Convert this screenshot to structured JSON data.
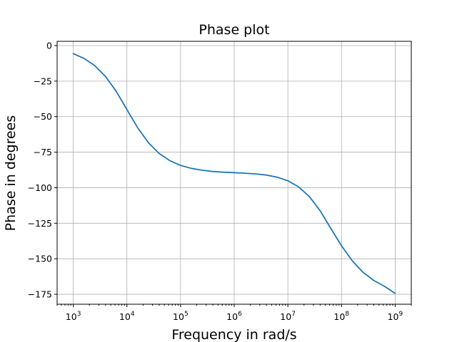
{
  "chart_data": {
    "type": "line",
    "title": "Phase plot",
    "xlabel": "Frequency in rad/s",
    "ylabel": "Phase in degrees",
    "xscale": "log",
    "xlim": [
      500,
      2000000000
    ],
    "ylim": [
      -182,
      3
    ],
    "xticks": [
      1000,
      10000,
      100000,
      1000000,
      10000000,
      100000000,
      1000000000
    ],
    "xtick_labels": [
      {
        "base": "10",
        "exp": "3"
      },
      {
        "base": "10",
        "exp": "4"
      },
      {
        "base": "10",
        "exp": "5"
      },
      {
        "base": "10",
        "exp": "6"
      },
      {
        "base": "10",
        "exp": "7"
      },
      {
        "base": "10",
        "exp": "8"
      },
      {
        "base": "10",
        "exp": "9"
      }
    ],
    "yticks": [
      0,
      -25,
      -50,
      -75,
      -100,
      -125,
      -150,
      -175
    ],
    "ytick_labels": [
      "0",
      "−25",
      "−50",
      "−75",
      "−100",
      "−125",
      "−150",
      "−175"
    ],
    "grid": true,
    "series": [
      {
        "color": "#1f77b4",
        "x": [
          1000,
          1585,
          2512,
          3981,
          6310,
          10000,
          15850,
          25120,
          39810,
          63100,
          100000,
          158500,
          251200,
          398100,
          631000,
          1000000,
          1585000,
          2512000,
          3981000,
          6310000,
          10000000,
          15850000,
          25120000,
          39810000,
          63100000,
          100000000,
          158500000,
          251200000,
          398100000,
          631000000,
          1000000000
        ],
        "y": [
          -5.7,
          -9.0,
          -14.1,
          -21.7,
          -32.2,
          -45.0,
          -57.8,
          -68.3,
          -75.9,
          -81.0,
          -84.3,
          -86.4,
          -87.7,
          -88.6,
          -89.1,
          -89.4,
          -89.8,
          -90.3,
          -91.1,
          -92.6,
          -95.1,
          -99.4,
          -106.2,
          -116.1,
          -128.6,
          -140.9,
          -151.4,
          -159.5,
          -165.2,
          -169.4,
          -174.3
        ]
      }
    ]
  }
}
